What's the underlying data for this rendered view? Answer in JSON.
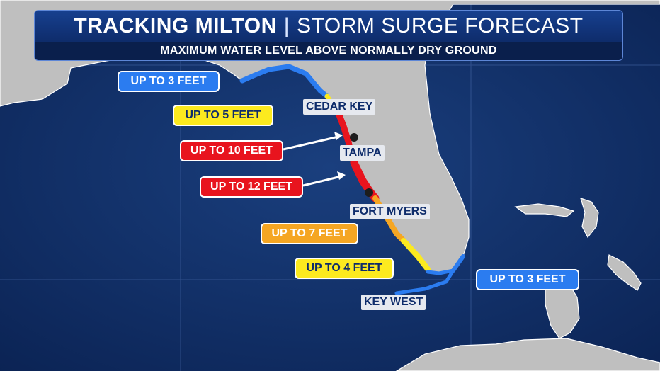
{
  "header": {
    "title": "TRACKING MILTON",
    "separator": "|",
    "subtitle": "STORM SURGE FORECAST",
    "tagline": "MAXIMUM WATER LEVEL ABOVE NORMALLY DRY GROUND"
  },
  "legend_colors": {
    "up_to_3_feet": "#2b7cf0",
    "up_to_4_or_5_feet": "#fcea1f",
    "up_to_7_feet": "#f5a623",
    "up_to_10_or_12_feet": "#e8141e"
  },
  "surge_labels": {
    "panhandle": "UP TO 3 FEET",
    "big_bend": "UP TO 5 FEET",
    "tampa_bay": "UP TO 10 FEET",
    "sarasota": "UP TO 12 FEET",
    "naples": "UP TO 7 FEET",
    "everglades": "UP TO 4 FEET",
    "east_coast": "UP TO 3 FEET"
  },
  "cities": {
    "cedar_key": "CEDAR KEY",
    "tampa": "TAMPA",
    "fort_myers": "FORT MYERS",
    "key_west": "KEY WEST"
  }
}
